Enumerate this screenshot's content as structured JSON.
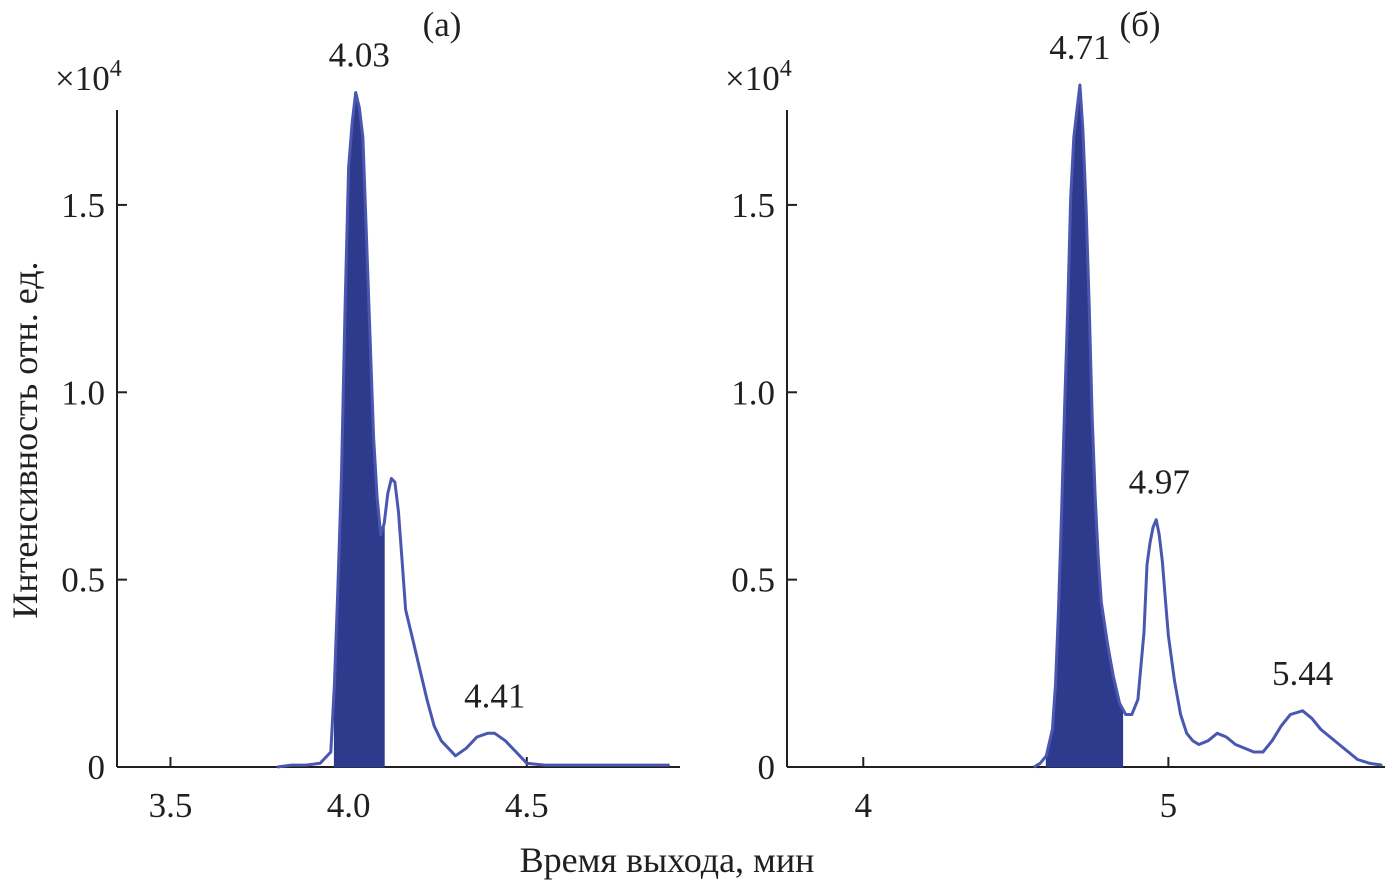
{
  "figure": {
    "xlabel": "Время выхода, мин",
    "ylabel": "Интенсивность отн. ед.",
    "colors": {
      "fill": "#2e3a8c",
      "line": "#4a57b0",
      "axis": "#231f20"
    }
  },
  "chart_data": [
    {
      "type": "area",
      "panel_label": "(а)",
      "y_multiplier": "×10",
      "y_multiplier_exp": "4",
      "xlim": [
        3.35,
        4.93
      ],
      "ylim": [
        0,
        1.78
      ],
      "xticks": [
        {
          "value": 3.5,
          "label": "3.5"
        },
        {
          "value": 4.0,
          "label": "4.0"
        },
        {
          "value": 4.5,
          "label": "4.5"
        }
      ],
      "yticks": [
        {
          "value": 0,
          "label": "0"
        },
        {
          "value": 0.5,
          "label": "0.5"
        },
        {
          "value": 1.0,
          "label": "1.0"
        },
        {
          "value": 1.5,
          "label": "1.5"
        }
      ],
      "filled_range": [
        3.96,
        4.1
      ],
      "series": [
        {
          "x": [
            3.8,
            3.84,
            3.88,
            3.92,
            3.95,
            3.96,
            3.97,
            3.98,
            3.99,
            4.0,
            4.01,
            4.02,
            4.03,
            4.04,
            4.05,
            4.06,
            4.07,
            4.08,
            4.09,
            4.1,
            4.11,
            4.12,
            4.13,
            4.14,
            4.15,
            4.16,
            4.18,
            4.2,
            4.22,
            4.24,
            4.26,
            4.28,
            4.3,
            4.33,
            4.36,
            4.39,
            4.41,
            4.44,
            4.47,
            4.5,
            4.55,
            4.65,
            4.75,
            4.85,
            4.9
          ],
          "y": [
            0,
            0.005,
            0.005,
            0.01,
            0.04,
            0.22,
            0.48,
            0.78,
            1.23,
            1.6,
            1.72,
            1.8,
            1.76,
            1.68,
            1.42,
            1.15,
            0.88,
            0.72,
            0.62,
            0.65,
            0.73,
            0.77,
            0.76,
            0.68,
            0.55,
            0.42,
            0.34,
            0.26,
            0.18,
            0.11,
            0.07,
            0.05,
            0.03,
            0.05,
            0.08,
            0.09,
            0.09,
            0.07,
            0.04,
            0.01,
            0.005,
            0.005,
            0.005,
            0.005,
            0.005
          ]
        }
      ],
      "annotations": [
        {
          "text": "4.03",
          "x": 4.03,
          "y": 1.8
        },
        {
          "text": "4.41",
          "x": 4.41,
          "y": 0.09
        }
      ]
    },
    {
      "type": "area",
      "panel_label": "(б)",
      "y_multiplier": "×10",
      "y_multiplier_exp": "4",
      "xlim": [
        3.75,
        5.71
      ],
      "ylim": [
        0,
        1.78
      ],
      "xticks": [
        {
          "value": 4,
          "label": "4"
        },
        {
          "value": 5,
          "label": "5"
        }
      ],
      "yticks": [
        {
          "value": 0,
          "label": "0"
        },
        {
          "value": 0.5,
          "label": "0.5"
        },
        {
          "value": 1.0,
          "label": "1.0"
        },
        {
          "value": 1.5,
          "label": "1.5"
        }
      ],
      "filled_range": [
        4.6,
        4.85
      ],
      "series": [
        {
          "x": [
            4.56,
            4.58,
            4.6,
            4.62,
            4.63,
            4.64,
            4.65,
            4.66,
            4.67,
            4.68,
            4.69,
            4.7,
            4.71,
            4.72,
            4.73,
            4.74,
            4.75,
            4.76,
            4.77,
            4.78,
            4.8,
            4.82,
            4.84,
            4.86,
            4.88,
            4.9,
            4.92,
            4.93,
            4.94,
            4.95,
            4.96,
            4.97,
            4.98,
            4.99,
            5.0,
            5.02,
            5.04,
            5.06,
            5.08,
            5.1,
            5.13,
            5.16,
            5.19,
            5.22,
            5.25,
            5.28,
            5.31,
            5.34,
            5.37,
            5.4,
            5.44,
            5.47,
            5.5,
            5.53,
            5.56,
            5.59,
            5.62,
            5.66,
            5.7
          ],
          "y": [
            0,
            0.01,
            0.03,
            0.1,
            0.22,
            0.42,
            0.68,
            0.96,
            1.22,
            1.52,
            1.68,
            1.75,
            1.82,
            1.7,
            1.5,
            1.24,
            0.94,
            0.72,
            0.56,
            0.44,
            0.33,
            0.24,
            0.17,
            0.14,
            0.14,
            0.18,
            0.36,
            0.54,
            0.6,
            0.64,
            0.66,
            0.62,
            0.55,
            0.45,
            0.35,
            0.23,
            0.14,
            0.09,
            0.07,
            0.06,
            0.07,
            0.09,
            0.08,
            0.06,
            0.05,
            0.04,
            0.04,
            0.07,
            0.11,
            0.14,
            0.15,
            0.13,
            0.1,
            0.08,
            0.06,
            0.04,
            0.02,
            0.01,
            0.005
          ]
        }
      ],
      "annotations": [
        {
          "text": "4.71",
          "x": 4.71,
          "y": 1.82
        },
        {
          "text": "4.97",
          "x": 4.97,
          "y": 0.66
        },
        {
          "text": "5.44",
          "x": 5.44,
          "y": 0.15
        }
      ]
    }
  ]
}
